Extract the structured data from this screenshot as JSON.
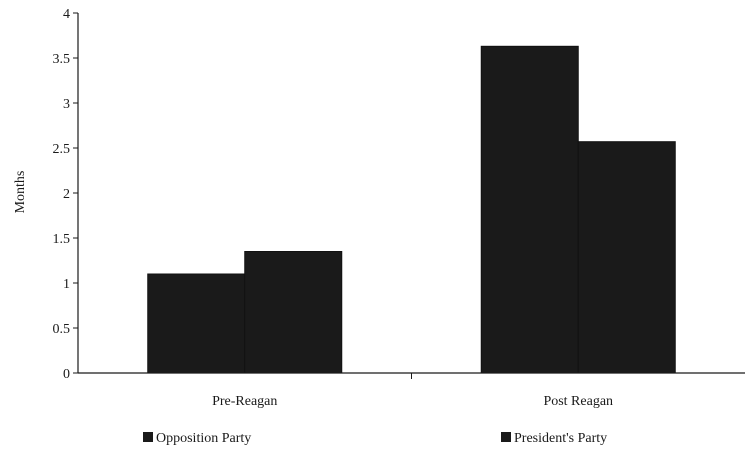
{
  "chart_data": {
    "type": "bar",
    "title": "",
    "xlabel": "",
    "ylabel": "Months",
    "ylim": [
      0,
      4
    ],
    "yticks": [
      0,
      0.5,
      1,
      1.5,
      2,
      2.5,
      3,
      3.5,
      4
    ],
    "ytick_labels": [
      "0",
      "0.5",
      "1",
      "1.5",
      "2",
      "2.5",
      "3",
      "3.5",
      "4"
    ],
    "categories": [
      "Pre-Reagan",
      "Post Reagan"
    ],
    "series": [
      {
        "name": "Opposition Party",
        "values": [
          1.1,
          3.63
        ],
        "color": "#1a1a1a"
      },
      {
        "name": "President's Party",
        "values": [
          1.35,
          2.57
        ],
        "color": "#1a1a1a"
      }
    ],
    "grid": false,
    "legend_position": "bottom"
  }
}
